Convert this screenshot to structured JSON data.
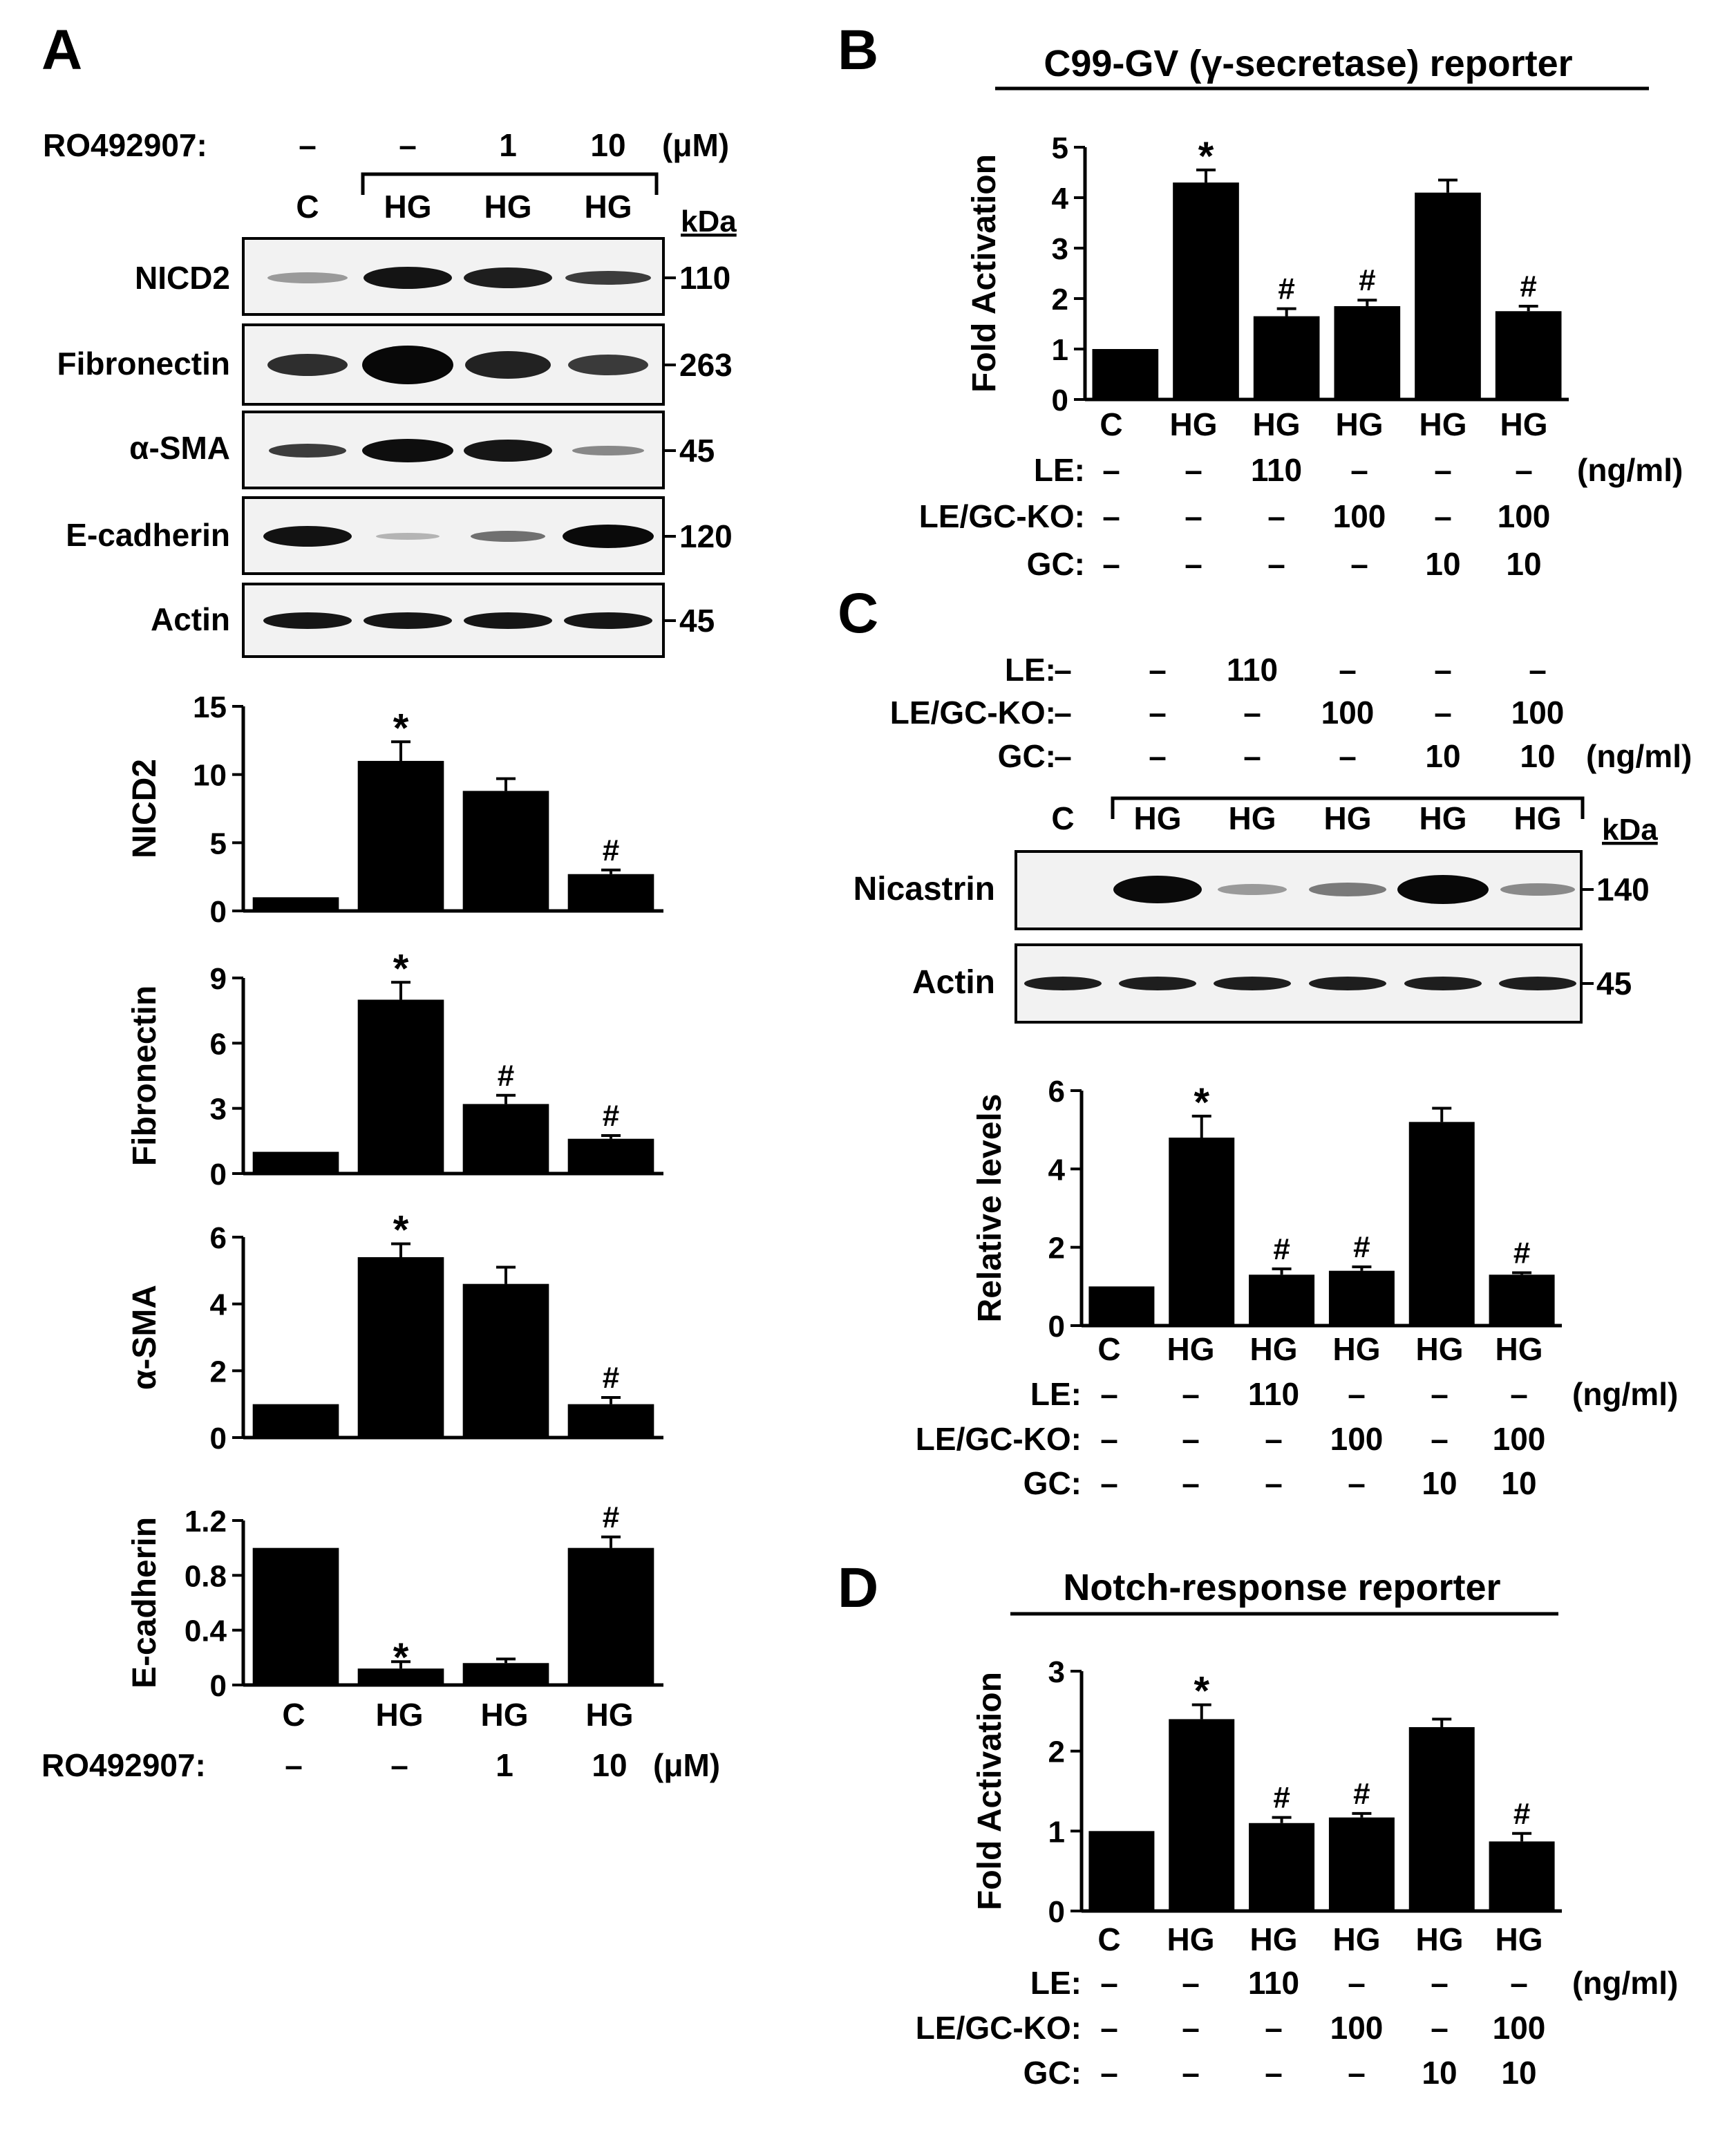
{
  "panel_a": {
    "letter": "A",
    "treatment_label": "RO492907:",
    "doses": [
      "–",
      "–",
      "1",
      "10"
    ],
    "dose_unit": "(μM)",
    "lanes": [
      "C",
      "HG",
      "HG",
      "HG"
    ],
    "kda_label": "kDa",
    "blots": [
      {
        "name": "NICD2",
        "kda": "110"
      },
      {
        "name": "Fibronectin",
        "kda": "263"
      },
      {
        "name": "α-SMA",
        "kda": "45"
      },
      {
        "name": "E-cadherin",
        "kda": "120"
      },
      {
        "name": "Actin",
        "kda": "45"
      }
    ],
    "x_labels": [
      "C",
      "HG",
      "HG",
      "HG"
    ],
    "bottom_doses": [
      "–",
      "–",
      "1",
      "10"
    ]
  },
  "panel_b": {
    "letter": "B",
    "title": "C99-GV (γ-secretase) reporter",
    "unit": "(ng/ml)"
  },
  "panel_c": {
    "letter": "C",
    "unit": "(ng/ml)",
    "lanes": [
      "C",
      "HG",
      "HG",
      "HG",
      "HG",
      "HG"
    ],
    "kda_label": "kDa",
    "blots": [
      {
        "name": "Nicastrin",
        "kda": "140"
      },
      {
        "name": "Actin",
        "kda": "45"
      }
    ]
  },
  "panel_d": {
    "letter": "D",
    "title": "Notch-response reporter",
    "unit": "(ng/ml)"
  },
  "treatments": [
    {
      "label": "LE:",
      "values": [
        "–",
        "–",
        "110",
        "–",
        "–",
        "–"
      ]
    },
    {
      "label": "LE/GC-KO:",
      "values": [
        "–",
        "–",
        "–",
        "100",
        "–",
        "100"
      ]
    },
    {
      "label": "GC:",
      "values": [
        "–",
        "–",
        "–",
        "–",
        "10",
        "10"
      ]
    }
  ],
  "chart_data": [
    {
      "id": "a1",
      "type": "bar",
      "ylabel": "NICD2",
      "categories": [
        "C",
        "HG",
        "HG",
        "HG"
      ],
      "values": [
        1,
        11,
        8.8,
        2.7
      ],
      "errors": [
        0,
        1.4,
        0.9,
        0.3
      ],
      "ylim": [
        0,
        15
      ],
      "ticks": [
        0,
        5,
        10,
        15
      ],
      "marks": [
        "",
        "*",
        "",
        "#"
      ]
    },
    {
      "id": "a2",
      "type": "bar",
      "ylabel": "Fibronectin",
      "categories": [
        "C",
        "HG",
        "HG",
        "HG"
      ],
      "values": [
        1,
        8,
        3.2,
        1.6
      ],
      "errors": [
        0,
        0.8,
        0.4,
        0.15
      ],
      "ylim": [
        0,
        9
      ],
      "ticks": [
        0,
        3,
        6,
        9
      ],
      "marks": [
        "",
        "*",
        "#",
        "#"
      ]
    },
    {
      "id": "a3",
      "type": "bar",
      "ylabel": "α-SMA",
      "categories": [
        "C",
        "HG",
        "HG",
        "HG"
      ],
      "values": [
        1,
        5.4,
        4.6,
        1
      ],
      "errors": [
        0,
        0.4,
        0.5,
        0.2
      ],
      "ylim": [
        0,
        6
      ],
      "ticks": [
        0,
        2,
        4,
        6
      ],
      "marks": [
        "",
        "*",
        "",
        "#"
      ]
    },
    {
      "id": "a4",
      "type": "bar",
      "ylabel": "E-cadherin",
      "categories": [
        "C",
        "HG",
        "HG",
        "HG"
      ],
      "values": [
        1,
        0.12,
        0.16,
        1
      ],
      "errors": [
        0,
        0.05,
        0.03,
        0.08
      ],
      "ylim": [
        0,
        1.2
      ],
      "ticks": [
        0,
        0.4,
        0.8,
        1.2
      ],
      "tick_labels": [
        "0",
        "0.4",
        "0.8",
        "1.2"
      ],
      "marks": [
        "",
        "*",
        "",
        "#"
      ],
      "mark_below": [
        false,
        true,
        false,
        false
      ]
    },
    {
      "id": "b",
      "type": "bar",
      "ylabel": "Fold Activation",
      "categories": [
        "C",
        "HG",
        "HG",
        "HG",
        "HG",
        "HG"
      ],
      "values": [
        1,
        4.3,
        1.65,
        1.85,
        4.1,
        1.75
      ],
      "errors": [
        0,
        0.25,
        0.15,
        0.12,
        0.25,
        0.1
      ],
      "ylim": [
        0,
        5
      ],
      "ticks": [
        0,
        1,
        2,
        3,
        4,
        5
      ],
      "marks": [
        "",
        "*",
        "#",
        "#",
        "",
        "#"
      ]
    },
    {
      "id": "c",
      "type": "bar",
      "ylabel": "Relative levels",
      "categories": [
        "C",
        "HG",
        "HG",
        "HG",
        "HG",
        "HG"
      ],
      "values": [
        1,
        4.8,
        1.3,
        1.4,
        5.2,
        1.3
      ],
      "errors": [
        0,
        0.55,
        0.15,
        0.1,
        0.35,
        0.05
      ],
      "ylim": [
        0,
        6
      ],
      "ticks": [
        0,
        2,
        4,
        6
      ],
      "marks": [
        "",
        "*",
        "#",
        "#",
        "",
        "#"
      ]
    },
    {
      "id": "d",
      "type": "bar",
      "ylabel": "Fold Activation",
      "categories": [
        "C",
        "HG",
        "HG",
        "HG",
        "HG",
        "HG"
      ],
      "values": [
        1,
        2.4,
        1.1,
        1.17,
        2.3,
        0.87
      ],
      "errors": [
        0,
        0.18,
        0.07,
        0.05,
        0.1,
        0.1
      ],
      "ylim": [
        0,
        3
      ],
      "ticks": [
        0,
        1,
        2,
        3
      ],
      "marks": [
        "",
        "*",
        "#",
        "#",
        "",
        "#"
      ]
    }
  ]
}
